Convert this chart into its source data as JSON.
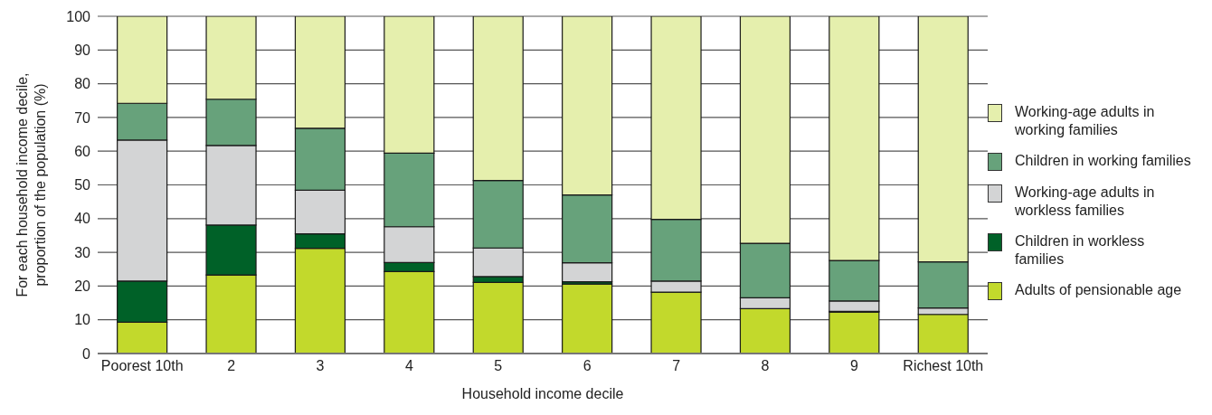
{
  "chart_data": {
    "type": "bar",
    "stacked": true,
    "categories": [
      "Poorest 10th",
      "2",
      "3",
      "4",
      "5",
      "6",
      "7",
      "8",
      "9",
      "Richest 10th"
    ],
    "xlabel": "Household income decile",
    "ylabel": "For each household income decile, proportion of the population (%)",
    "ylim": [
      0,
      100
    ],
    "yticks": [
      0,
      10,
      20,
      30,
      40,
      50,
      60,
      70,
      80,
      90,
      100
    ],
    "grid": "y",
    "legend": "right",
    "series": [
      {
        "name": "Adults of pensionable age",
        "color": "#c2d92c",
        "values": [
          9.3,
          23.3,
          31.2,
          24.3,
          21.1,
          20.6,
          18.2,
          13.3,
          12.3,
          11.6
        ]
      },
      {
        "name": "Children in workless families",
        "color": "#006128",
        "values": [
          12.2,
          14.8,
          4.3,
          2.7,
          1.7,
          0.7,
          null,
          null,
          0.2,
          null
        ]
      },
      {
        "name": "Working-age adults in workless families",
        "color": "#d3d4d5",
        "values": [
          41.8,
          23.6,
          12.9,
          10.6,
          8.5,
          5.6,
          3.3,
          3.2,
          3.1,
          1.9
        ]
      },
      {
        "name": "Children in working families",
        "color": "#67a27b",
        "values": [
          10.9,
          13.7,
          18.4,
          21.8,
          20.0,
          20.1,
          18.3,
          16.2,
          12.0,
          13.7
        ]
      },
      {
        "name": "Working-age adults in working families",
        "color": "#e5efad",
        "values": [
          25.8,
          24.6,
          33.2,
          40.6,
          48.7,
          53.0,
          60.2,
          67.3,
          72.4,
          72.8
        ]
      }
    ]
  }
}
